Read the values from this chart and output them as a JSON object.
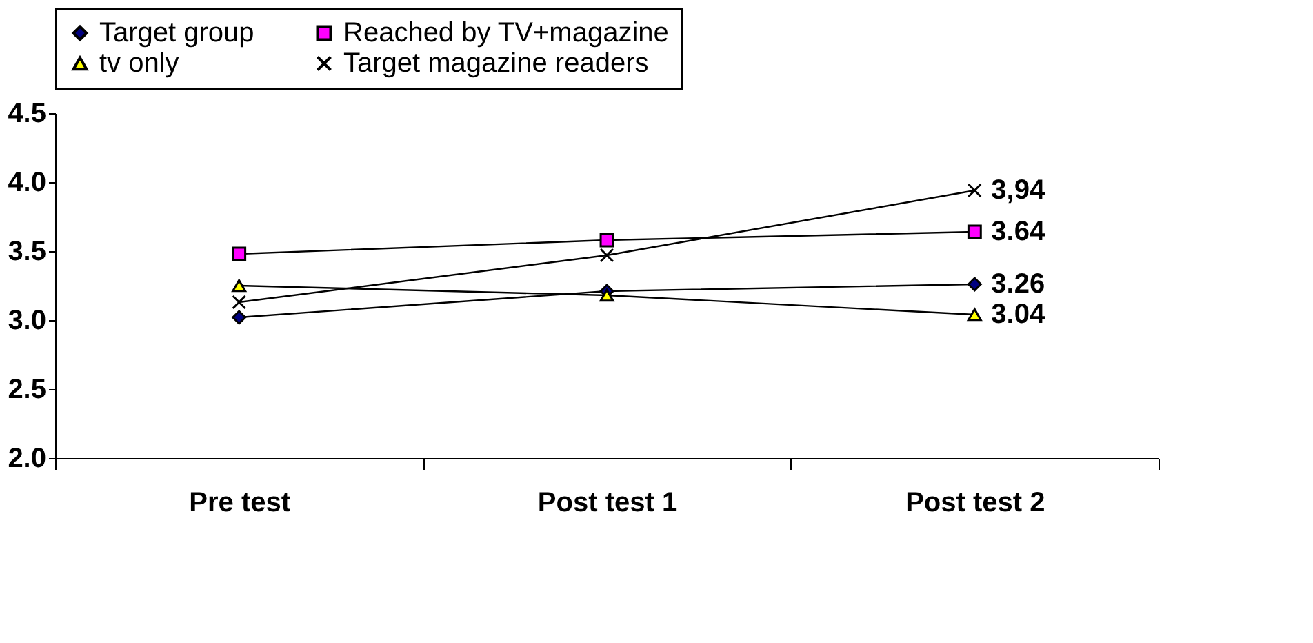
{
  "chart_data": {
    "type": "line",
    "categories": [
      "Pre test",
      "Post test 1",
      "Post test 2"
    ],
    "series": [
      {
        "name": "Target group",
        "color": "#000080",
        "marker": "diamond",
        "values": [
          3.02,
          3.21,
          3.26
        ],
        "value_labels": [
          null,
          null,
          "3.26"
        ]
      },
      {
        "name": "Reached by TV+magazine",
        "color": "#ff00ff",
        "marker": "square",
        "values": [
          3.48,
          3.58,
          3.64
        ],
        "value_labels": [
          null,
          null,
          "3.64"
        ]
      },
      {
        "name": "tv only",
        "color": "#ffff00",
        "marker": "triangle",
        "values": [
          3.25,
          3.18,
          3.04
        ],
        "value_labels": [
          null,
          null,
          "3.04"
        ]
      },
      {
        "name": "Target magazine readers",
        "color": "#000000",
        "marker": "cross",
        "values": [
          3.13,
          3.47,
          3.94
        ],
        "value_labels": [
          null,
          null,
          "3,94"
        ]
      }
    ],
    "ylim": [
      2.0,
      4.5
    ],
    "yticks": [
      {
        "value": 2.0,
        "label": "2.0"
      },
      {
        "value": 2.5,
        "label": "2.5"
      },
      {
        "value": 3.0,
        "label": "3.0"
      },
      {
        "value": 3.5,
        "label": "3.5"
      },
      {
        "value": 4.0,
        "label": "4.0"
      },
      {
        "value": 4.5,
        "label": "4.5"
      }
    ],
    "grid": false,
    "legend": "top",
    "line_style": "solid"
  }
}
